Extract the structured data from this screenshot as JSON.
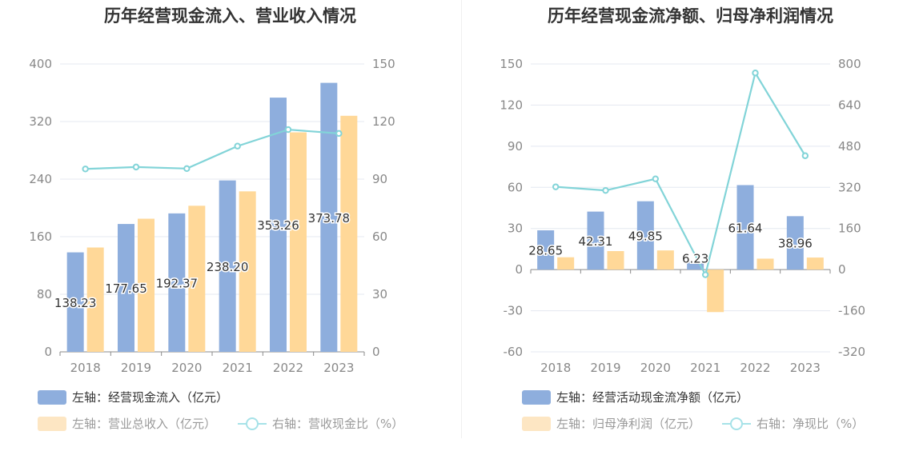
{
  "chart_data": [
    {
      "type": "bar",
      "title": "历年经营现金流入、营业收入情况",
      "categories": [
        "2018",
        "2019",
        "2020",
        "2021",
        "2022",
        "2023"
      ],
      "ylim": [
        0,
        400
      ],
      "y_ticks": [
        "0",
        "80",
        "160",
        "240",
        "320",
        "400"
      ],
      "y2lim": [
        0,
        150
      ],
      "y2_ticks": [
        "0",
        "30",
        "60",
        "90",
        "120",
        "150"
      ],
      "grid": true,
      "legend_position": "bottom-left",
      "series": [
        {
          "name": "左轴：经营现金流入（亿元）",
          "axis": "left",
          "kind": "bar",
          "color": "#8eaedd",
          "values": [
            138.23,
            177.65,
            192.37,
            238.2,
            353.26,
            373.78
          ],
          "labels": [
            "138.23",
            "177.65",
            "192.37",
            "238.20",
            "353.26",
            "373.78"
          ]
        },
        {
          "name": "左轴：营业总收入（亿元）",
          "axis": "left",
          "kind": "bar",
          "color": "#ffd898",
          "values": [
            145,
            185,
            203,
            223,
            305,
            328
          ]
        },
        {
          "name": "右轴：营收现金比（%）",
          "axis": "right",
          "kind": "line",
          "color": "#82d4d8",
          "values": [
            95.3,
            96.3,
            95.5,
            107.2,
            115.8,
            113.8
          ]
        }
      ]
    },
    {
      "type": "bar",
      "title": "历年经营现金流净额、归母净利润情况",
      "categories": [
        "2018",
        "2019",
        "2020",
        "2021",
        "2022",
        "2023"
      ],
      "ylim": [
        -60,
        150
      ],
      "y_ticks": [
        "-60",
        "-30",
        "0",
        "30",
        "60",
        "90",
        "120",
        "150"
      ],
      "y2lim": [
        -320,
        800
      ],
      "y2_ticks": [
        "-320",
        "-160",
        "0",
        "160",
        "320",
        "480",
        "640",
        "800"
      ],
      "grid": true,
      "legend_position": "bottom-left",
      "series": [
        {
          "name": "左轴：经营活动现金流净额（亿元）",
          "axis": "left",
          "kind": "bar",
          "color": "#8eaedd",
          "values": [
            28.65,
            42.31,
            49.85,
            6.23,
            61.64,
            38.96
          ],
          "labels": [
            "28.65",
            "42.31",
            "49.85",
            "6.23",
            "61.64",
            "38.96"
          ]
        },
        {
          "name": "左轴：归母净利润（亿元）",
          "axis": "left",
          "kind": "bar",
          "color": "#ffd898",
          "values": [
            9,
            13.5,
            14,
            -31,
            8,
            8.8
          ]
        },
        {
          "name": "右轴：净现比（%）",
          "axis": "right",
          "kind": "line",
          "color": "#82d4d8",
          "values": [
            322,
            308,
            353,
            -20,
            765,
            443
          ]
        }
      ]
    }
  ]
}
